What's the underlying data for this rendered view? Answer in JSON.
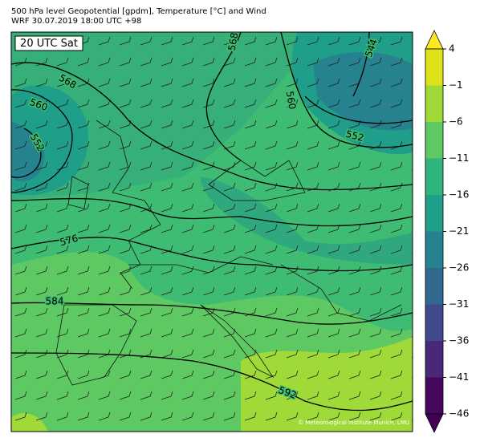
{
  "header": {
    "title": "500 hPa level Geopotential [gpdm], Temperature [°C] and Wind",
    "subtitle": "WRF 30.07.2019 18:00 UTC +98"
  },
  "map": {
    "time_label": "20 UTC Sat",
    "contour_labels": [
      "568",
      "560",
      "552",
      "576",
      "584",
      "592",
      "544",
      "560",
      "552",
      "568"
    ],
    "credit": "© Meteorological Institute Munich, LMU"
  },
  "colorbar": {
    "ticks": [
      "4",
      "−1",
      "−6",
      "−11",
      "−16",
      "−21",
      "−26",
      "−31",
      "−36",
      "−41",
      "−46"
    ],
    "colors": [
      "#fde725",
      "#dde318",
      "#a0da39",
      "#5ec962",
      "#2fb47c",
      "#1f9e89",
      "#26828e",
      "#31688e",
      "#3e4a89",
      "#482878",
      "#46085c",
      "#440154"
    ]
  }
}
